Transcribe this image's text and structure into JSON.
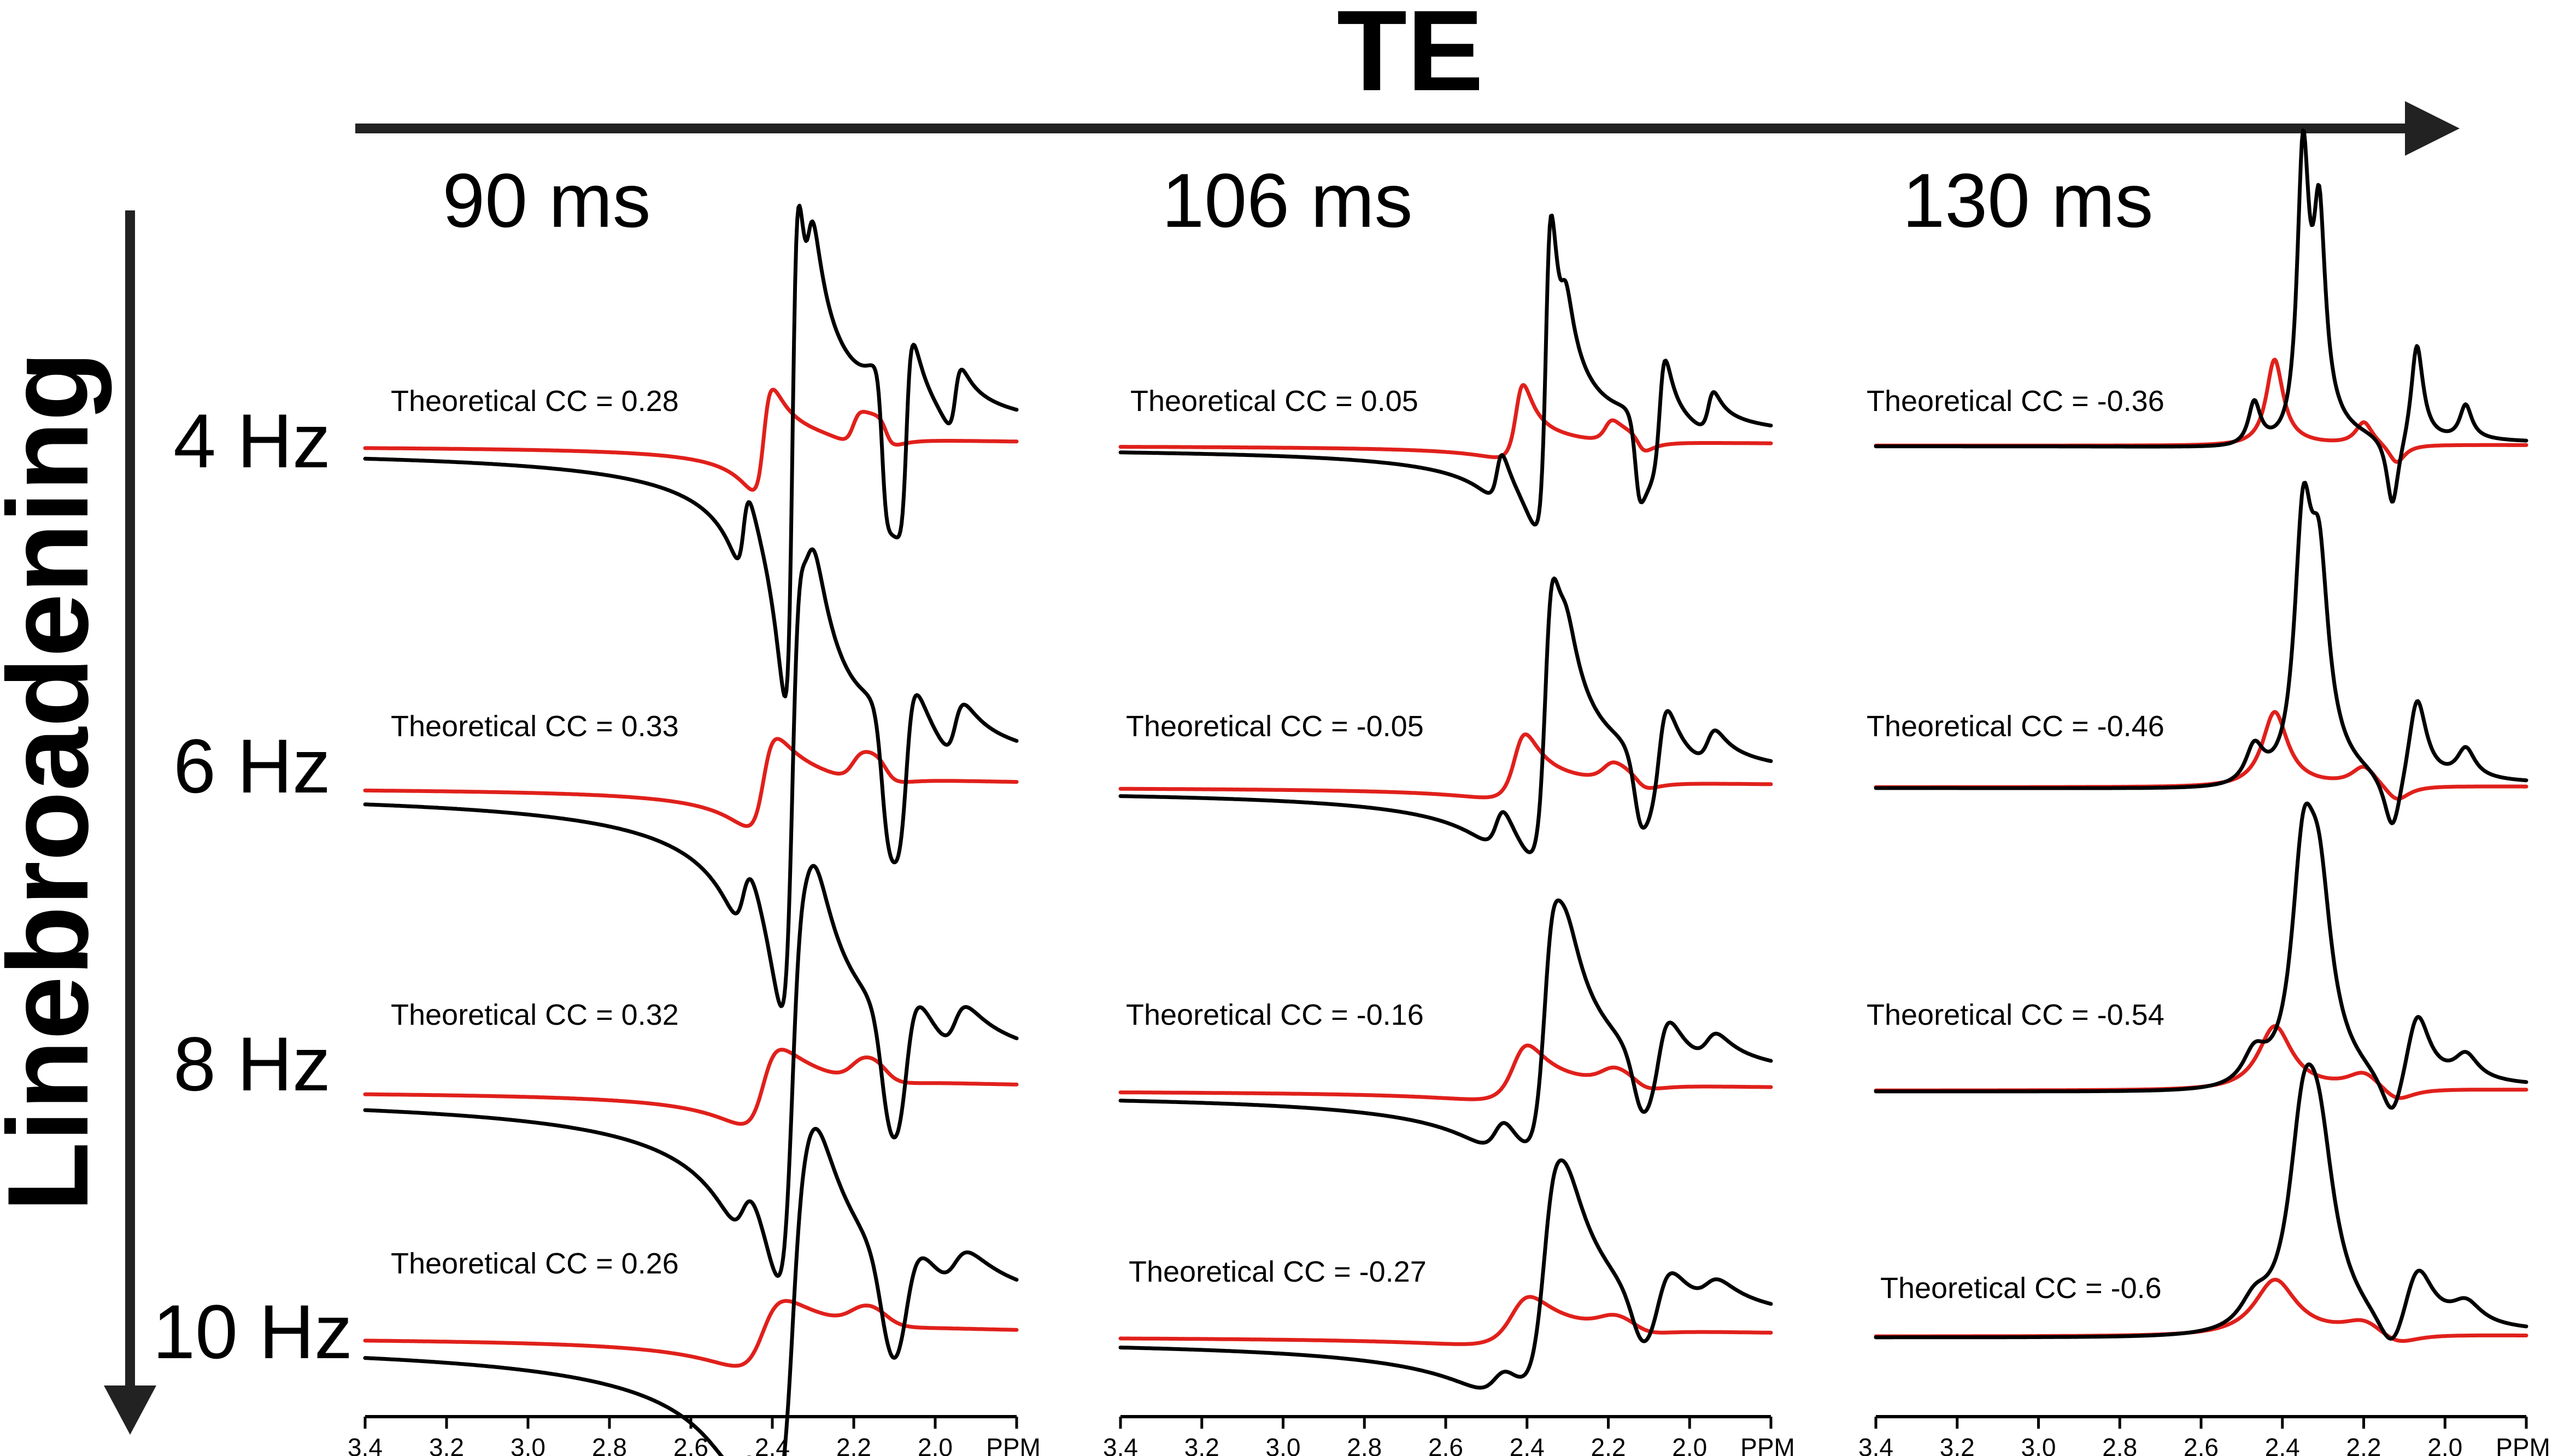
{
  "te_header": {
    "label": "TE"
  },
  "linebroadening_header": {
    "label": "Linebroadening"
  },
  "columns": [
    {
      "label": "90 ms"
    },
    {
      "label": "106 ms"
    },
    {
      "label": "130 ms"
    }
  ],
  "rows": [
    {
      "label": "4 Hz"
    },
    {
      "label": "6 Hz"
    },
    {
      "label": "8 Hz"
    },
    {
      "label": "10 Hz"
    }
  ],
  "x_axis": {
    "ticks": [
      "3.4",
      "3.2",
      "3.0",
      "2.8",
      "2.6",
      "2.4",
      "2.2",
      "2.0"
    ],
    "unit": "PPM",
    "range": [
      3.4,
      1.8
    ]
  },
  "colors": {
    "spectrum": "#000000",
    "fit": "#e0201b",
    "arrow": "#222222"
  },
  "chart_data": {
    "type": "line",
    "x_axis_direction": "reversed",
    "xlim": [
      3.4,
      1.8
    ],
    "series": [],
    "panels": [
      {
        "row": "4 Hz",
        "column": "90 ms",
        "annotation": "Theoretical CC = 0.28",
        "cc": 0.28
      },
      {
        "row": "4 Hz",
        "column": "106 ms",
        "annotation": "Theoretical CC = 0.05",
        "cc": 0.05
      },
      {
        "row": "4 Hz",
        "column": "130 ms",
        "annotation": "Theoretical CC = -0.36",
        "cc": -0.36
      },
      {
        "row": "6 Hz",
        "column": "90 ms",
        "annotation": "Theoretical CC = 0.33",
        "cc": 0.33
      },
      {
        "row": "6 Hz",
        "column": "106 ms",
        "annotation": "Theoretical CC = -0.05",
        "cc": -0.05
      },
      {
        "row": "6 Hz",
        "column": "130 ms",
        "annotation": "Theoretical CC = -0.46",
        "cc": -0.46
      },
      {
        "row": "8 Hz",
        "column": "90 ms",
        "annotation": "Theoretical CC = 0.32",
        "cc": 0.32
      },
      {
        "row": "8 Hz",
        "column": "106 ms",
        "annotation": "Theoretical CC = -0.16",
        "cc": -0.16
      },
      {
        "row": "8 Hz",
        "column": "130 ms",
        "annotation": "Theoretical CC = -0.54",
        "cc": -0.54
      },
      {
        "row": "10 Hz",
        "column": "90 ms",
        "annotation": "Theoretical CC = 0.26",
        "cc": 0.26
      },
      {
        "row": "10 Hz",
        "column": "106 ms",
        "annotation": "Theoretical CC = -0.27",
        "cc": -0.27
      },
      {
        "row": "10 Hz",
        "column": "130 ms",
        "annotation": "Theoretical CC = -0.6",
        "cc": -0.6
      }
    ]
  }
}
